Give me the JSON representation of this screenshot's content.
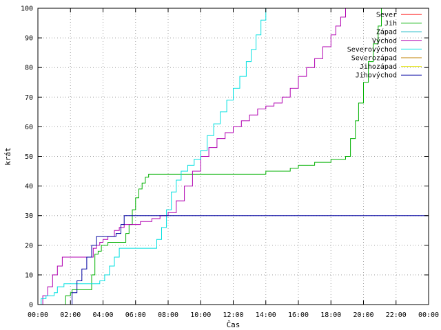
{
  "chart_data": {
    "type": "line",
    "title": "",
    "xlabel": "Čas",
    "ylabel": "krát",
    "xlim": [
      0,
      24
    ],
    "ylim": [
      0,
      100
    ],
    "x_ticks": [
      "00:00",
      "02:00",
      "04:00",
      "06:00",
      "08:00",
      "10:00",
      "12:00",
      "14:00",
      "16:00",
      "18:00",
      "20:00",
      "22:00",
      "00:00"
    ],
    "y_ticks": [
      0,
      10,
      20,
      30,
      40,
      50,
      60,
      70,
      80,
      90,
      100
    ],
    "grid": true,
    "legend_position": "top-right",
    "series": [
      {
        "name": "Sever",
        "color": "#ff0000",
        "x": [],
        "y": []
      },
      {
        "name": "Jih",
        "color": "#00b000",
        "x": [
          1.55,
          1.7,
          2.0,
          2.1,
          3.0,
          3.3,
          3.5,
          3.7,
          3.9,
          4.3,
          5.2,
          5.4,
          5.6,
          5.8,
          6.0,
          6.2,
          6.4,
          6.6,
          6.8,
          7.0,
          9.0,
          12.0,
          13.0,
          14.0,
          15.5,
          16.0,
          17.0,
          18.0,
          18.9,
          19.2,
          19.5,
          19.7,
          20.0,
          20.3,
          20.6,
          20.9,
          21.1
        ],
        "y": [
          0,
          3,
          4,
          5,
          5,
          10,
          17,
          18,
          20,
          21,
          21,
          24,
          27,
          32,
          36,
          39,
          41,
          43,
          44,
          44,
          44,
          44,
          44,
          45,
          46,
          47,
          48,
          49,
          50,
          56,
          62,
          68,
          75,
          82,
          88,
          94,
          100
        ]
      },
      {
        "name": "Západ",
        "color": "#00b0c0",
        "x": [],
        "y": []
      },
      {
        "name": "Východ",
        "color": "#b000b0",
        "x": [
          0.0,
          0.3,
          0.6,
          0.9,
          1.2,
          1.5,
          2.0,
          2.6,
          3.0,
          3.4,
          3.6,
          3.8,
          4.0,
          4.3,
          4.7,
          5.0,
          5.3,
          5.6,
          6.0,
          6.3,
          6.7,
          7.0,
          7.5,
          8.0,
          8.5,
          9.0,
          9.5,
          10.0,
          10.5,
          11.0,
          11.5,
          12.0,
          12.5,
          13.0,
          13.5,
          14.0,
          14.5,
          15.0,
          15.5,
          16.0,
          16.5,
          17.0,
          17.5,
          18.0,
          18.3,
          18.6,
          18.9
        ],
        "y": [
          0,
          3,
          6,
          10,
          13,
          16,
          16,
          16,
          16,
          19,
          20,
          21,
          22,
          23,
          25,
          26,
          27,
          27,
          27,
          28,
          28,
          29,
          30,
          31,
          35,
          40,
          45,
          50,
          53,
          56,
          58,
          60,
          62,
          64,
          66,
          67,
          68,
          70,
          73,
          77,
          80,
          83,
          87,
          91,
          94,
          97,
          100
        ]
      },
      {
        "name": "Severovýchod",
        "color": "#00e0e0",
        "x": [
          0.0,
          0.2,
          0.5,
          0.8,
          1.0,
          1.2,
          1.6,
          2.0,
          2.5,
          3.0,
          3.5,
          3.8,
          4.1,
          4.4,
          4.7,
          5.0,
          5.5,
          6.0,
          6.5,
          7.0,
          7.3,
          7.6,
          7.9,
          8.2,
          8.5,
          8.8,
          9.2,
          9.6,
          10.0,
          10.4,
          10.8,
          11.2,
          11.6,
          12.0,
          12.4,
          12.8,
          13.1,
          13.4,
          13.7,
          14.0
        ],
        "y": [
          0,
          2,
          3,
          3,
          4,
          6,
          7,
          7,
          7,
          7,
          7,
          8,
          10,
          13,
          16,
          19,
          19,
          19,
          19,
          19,
          22,
          26,
          32,
          38,
          42,
          45,
          47,
          49,
          52,
          57,
          61,
          65,
          69,
          73,
          77,
          82,
          86,
          91,
          96,
          100
        ]
      },
      {
        "name": "Severozápad",
        "color": "#c08000",
        "x": [],
        "y": []
      },
      {
        "name": "Jihozápad",
        "color": "#e0e000",
        "x": [],
        "y": []
      },
      {
        "name": "Jihovýchod",
        "color": "#0000a0",
        "x": [
          1.85,
          2.1,
          2.4,
          2.7,
          3.0,
          3.3,
          3.6,
          3.9,
          4.2,
          4.5,
          4.8,
          5.1,
          5.3,
          24.0
        ],
        "y": [
          0,
          4,
          8,
          12,
          16,
          20,
          23,
          23,
          23,
          23,
          24,
          27,
          30,
          30
        ]
      }
    ]
  }
}
